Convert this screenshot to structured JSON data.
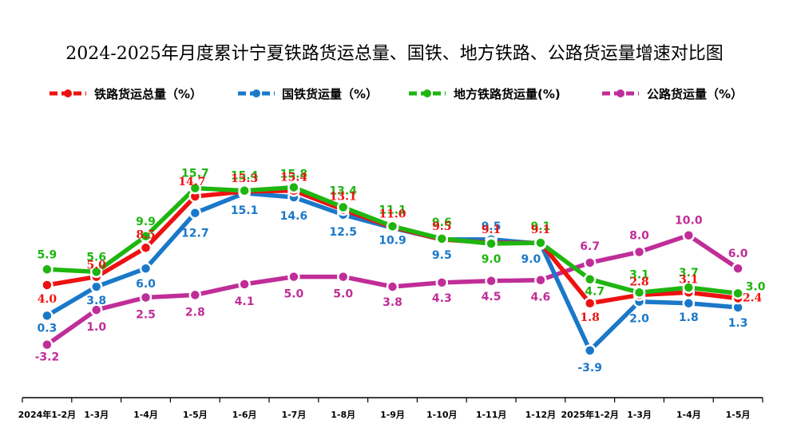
{
  "chart_data": {
    "type": "line",
    "title": "2024-2025年月度累计宁夏铁路货运总量、国铁、地方铁路、公路货运量增速对比图",
    "categories": [
      "2024年1-2月",
      "1-3月",
      "1-4月",
      "1-5月",
      "1-6月",
      "1-7月",
      "1-8月",
      "1-9月",
      "1-10月",
      "1-11月",
      "1-12月",
      "2025年1-2月",
      "1-3月",
      "1-4月",
      "1-5月"
    ],
    "ylim": [
      -6,
      18
    ],
    "grid": false,
    "legend_position": "top",
    "series": [
      {
        "name": "铁路货运总量（%）",
        "color": "#ee1111",
        "values": [
          4.0,
          5.0,
          8.5,
          14.7,
          15.3,
          15.4,
          13.1,
          11.0,
          9.5,
          9.1,
          9.1,
          1.8,
          2.8,
          3.1,
          2.4
        ]
      },
      {
        "name": "国铁货运量（%）",
        "color": "#1a78c9",
        "values": [
          0.3,
          3.8,
          6.0,
          12.7,
          15.1,
          14.6,
          12.5,
          10.9,
          9.5,
          9.5,
          9.0,
          -3.9,
          2.0,
          1.8,
          1.3
        ]
      },
      {
        "name": "地方铁路货运量(%)",
        "color": "#1fb510",
        "values": [
          5.9,
          5.6,
          9.9,
          15.7,
          15.4,
          15.8,
          13.4,
          11.1,
          9.6,
          9.0,
          9.1,
          4.7,
          3.1,
          3.7,
          3.0
        ]
      },
      {
        "name": "公路货运量（%）",
        "color": "#c02d98",
        "values": [
          -3.2,
          1.0,
          2.5,
          2.8,
          4.1,
          5.0,
          5.0,
          3.8,
          4.3,
          4.5,
          4.6,
          6.7,
          8.0,
          10.0,
          6.0
        ]
      }
    ]
  }
}
